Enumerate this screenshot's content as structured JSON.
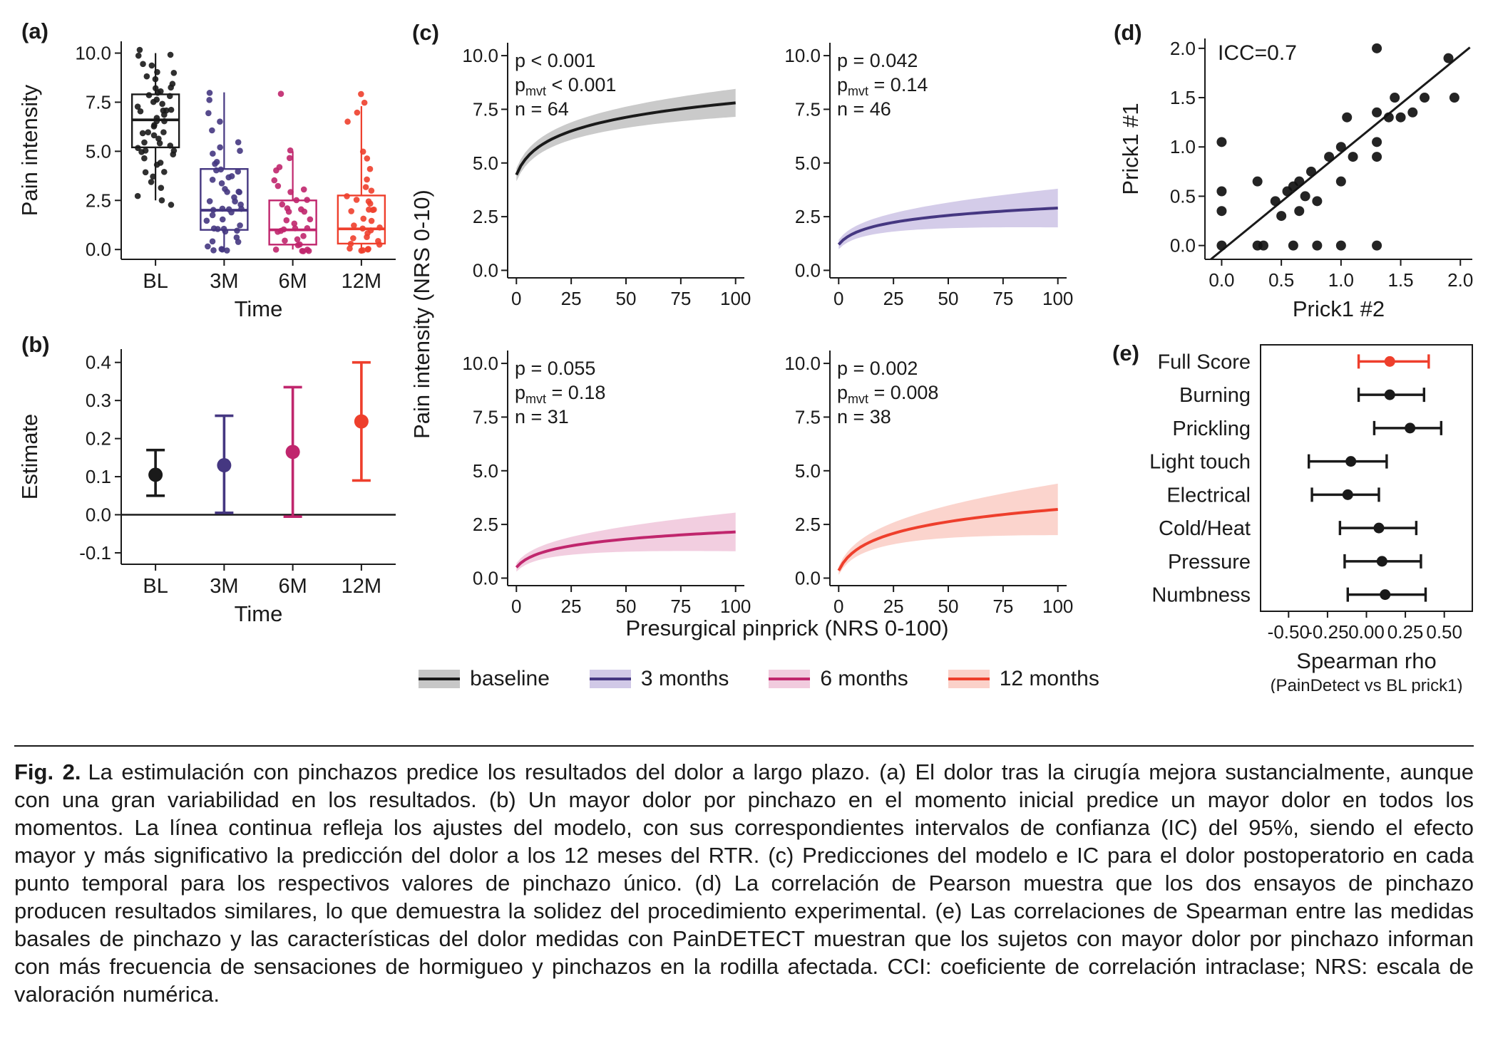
{
  "figure": {
    "background": "#ffffff"
  },
  "panels": {
    "a": {
      "tag": "(a)"
    },
    "b": {
      "tag": "(b)"
    },
    "c": {
      "tag": "(c)"
    },
    "d": {
      "tag": "(d)"
    },
    "e": {
      "tag": "(e)"
    }
  },
  "colors": {
    "baseline": "#1a1a1a",
    "three_months": "#453781",
    "six_months": "#c0266d",
    "twelve_months": "#ee3f2c"
  },
  "legend": {
    "items": [
      {
        "label": "baseline",
        "color": "#1a1a1a",
        "band": "#bdbdbd"
      },
      {
        "label": "3 months",
        "color": "#453781",
        "band": "#c9bfe3"
      },
      {
        "label": "6 months",
        "color": "#c0266d",
        "band": "#efc2d8"
      },
      {
        "label": "12 months",
        "color": "#ee3f2c",
        "band": "#fac9c0"
      }
    ]
  },
  "caption": {
    "label": "Fig. 2.",
    "text": "La estimulación con pinchazos predice los resultados del dolor a largo plazo. (a) El dolor tras la cirugía mejora sustancialmente, aunque con una gran variabilidad en los resultados. (b) Un mayor dolor por pinchazo en el momento inicial predice un mayor dolor en todos los momentos. La línea continua refleja los ajustes del modelo, con sus correspondientes intervalos de confianza (IC) del 95%, siendo el efecto mayor y más significativo la predicción del dolor a los 12 meses del RTR. (c) Predicciones del modelo e IC para el dolor postoperatorio en cada punto temporal para los respectivos valores de pinchazo único. (d) La correlación de Pearson muestra que los dos ensayos de pinchazo producen resultados similares, lo que demuestra la solidez del procedimiento experimental. (e) Las correlaciones de Spearman entre las medidas basales de pinchazo y las características del dolor medidas con PainDETECT muestran que los sujetos con mayor dolor por pinchazo informan con más frecuencia de sensaciones de hormigueo y pinchazos en la rodilla afectada. CCI: coeficiente de correlación intraclase; NRS: escala de valoración numérica."
  },
  "chart_data": [
    {
      "id": "a",
      "type": "boxplot",
      "ylabel": "Pain intensity",
      "xlabel": "Time",
      "categories": [
        "BL",
        "3M",
        "6M",
        "12M"
      ],
      "yticks": [
        0.0,
        2.5,
        5.0,
        7.5,
        10.0
      ],
      "yticklabels": [
        "0.0",
        "2.5",
        "5.0",
        "7.5",
        "10.0"
      ],
      "ylim": [
        -0.5,
        10.6
      ],
      "series": [
        {
          "name": "BL",
          "color": "#1a1a1a",
          "box": {
            "lo": 2.5,
            "q1": 5.2,
            "median": 6.6,
            "q3": 7.9,
            "hi": 10.0
          },
          "points": [
            10.2,
            10,
            9.8,
            9.5,
            9.3,
            9,
            9,
            8.8,
            8.6,
            8.5,
            8.3,
            8.2,
            8,
            8,
            7.9,
            7.8,
            7.6,
            7.5,
            7.5,
            7.3,
            7.2,
            7,
            7,
            7,
            6.8,
            6.7,
            6.5,
            6.5,
            6.4,
            6.2,
            6,
            6,
            6,
            5.9,
            5.7,
            5.5,
            5.5,
            5.3,
            5.2,
            5,
            5,
            5,
            4.8,
            4.6,
            4.5,
            4.3,
            4,
            4,
            3.8,
            3.5,
            3.2,
            2.8,
            2.5,
            2.2
          ]
        },
        {
          "name": "3M",
          "color": "#453781",
          "box": {
            "lo": 0.0,
            "q1": 1.0,
            "median": 2.0,
            "q3": 4.1,
            "hi": 8.0
          },
          "points": [
            8,
            7.6,
            7,
            6.5,
            6,
            5.5,
            5.2,
            5,
            4.8,
            4.5,
            4.3,
            4.1,
            4,
            4,
            3.8,
            3.6,
            3.5,
            3.3,
            3.1,
            3,
            3,
            2.9,
            2.7,
            2.5,
            2.5,
            2.3,
            2.1,
            2,
            2,
            2,
            1.9,
            1.7,
            1.5,
            1.5,
            1.3,
            1.1,
            1,
            1,
            1,
            0.9,
            0.7,
            0.5,
            0.4,
            0.2,
            0,
            0,
            0,
            0
          ]
        },
        {
          "name": "6M",
          "color": "#c0266d",
          "box": {
            "lo": 0.0,
            "q1": 0.25,
            "median": 1.0,
            "q3": 2.5,
            "hi": 5.0
          },
          "points": [
            8,
            5,
            4.6,
            4.2,
            4,
            3.6,
            3.2,
            3,
            2.9,
            2.6,
            2.5,
            2.3,
            2.1,
            2,
            2,
            1.9,
            1.6,
            1.5,
            1.3,
            1.1,
            1,
            1,
            1,
            0.9,
            0.6,
            0.5,
            0.5,
            0.3,
            0.2,
            0,
            0,
            0,
            0,
            0
          ]
        },
        {
          "name": "12M",
          "color": "#ee3f2c",
          "box": {
            "lo": 0.0,
            "q1": 0.3,
            "median": 1.05,
            "q3": 2.75,
            "hi": 7.3
          },
          "points": [
            8,
            7.5,
            7,
            6.6,
            5,
            4.6,
            4.1,
            3.6,
            3.1,
            3,
            2.8,
            2.6,
            2.5,
            2.3,
            2.1,
            2,
            2,
            1.9,
            1.6,
            1.5,
            1.3,
            1.1,
            1,
            1,
            0.9,
            0.6,
            0.5,
            0.5,
            0.3,
            0.2,
            0,
            0,
            0,
            0,
            0
          ]
        }
      ]
    },
    {
      "id": "b",
      "type": "pointrange",
      "ylabel": "Estimate",
      "xlabel": "Time",
      "categories": [
        "BL",
        "3M",
        "6M",
        "12M"
      ],
      "yticks": [
        -0.1,
        0.0,
        0.1,
        0.2,
        0.3,
        0.4
      ],
      "yticklabels": [
        "-0.1",
        "0.0",
        "0.1",
        "0.2",
        "0.3",
        "0.4"
      ],
      "ylim": [
        -0.13,
        0.435
      ],
      "hline": 0.0,
      "estimates": [
        {
          "category": "BL",
          "value": 0.105,
          "lo": 0.05,
          "hi": 0.17,
          "color": "#1a1a1a"
        },
        {
          "category": "3M",
          "value": 0.13,
          "lo": 0.005,
          "hi": 0.26,
          "color": "#453781"
        },
        {
          "category": "6M",
          "value": 0.165,
          "lo": -0.005,
          "hi": 0.335,
          "color": "#c0266d"
        },
        {
          "category": "12M",
          "value": 0.245,
          "lo": 0.09,
          "hi": 0.4,
          "color": "#ee3f2c"
        }
      ]
    },
    {
      "id": "c",
      "type": "line",
      "ylabel": "Pain intensity (NRS 0-10)",
      "xlabel": "Presurgical pinprick (NRS 0-100)",
      "xticks": [
        0,
        25,
        50,
        75,
        100
      ],
      "xticklabels": [
        "0",
        "25",
        "50",
        "75",
        "100"
      ],
      "yticks": [
        0.0,
        2.5,
        5.0,
        7.5,
        10.0
      ],
      "yticklabels": [
        "0.0",
        "2.5",
        "5.0",
        "7.5",
        "10.0"
      ],
      "xlim": [
        -4,
        104
      ],
      "ylim": [
        -0.35,
        10.6
      ],
      "stats_sub_label": "mvt",
      "subplots": [
        {
          "name": "baseline",
          "color": "#1a1a1a",
          "band": "#bdbdbd",
          "stats": {
            "p": "p < 0.001",
            "pmvt": "< 0.001",
            "n": "n = 64"
          },
          "curve": {
            "y_start": 4.45,
            "y_end": 7.8,
            "shape_k": 0.25
          },
          "ci_halfwidth": {
            "start": 0.3,
            "end": 0.65
          }
        },
        {
          "name": "3 months",
          "color": "#453781",
          "band": "#c9bfe3",
          "stats": {
            "p": "p = 0.042",
            "pmvt": "= 0.14",
            "n": "n = 46"
          },
          "curve": {
            "y_start": 1.2,
            "y_end": 2.9,
            "shape_k": 0.25
          },
          "ci_halfwidth": {
            "start": 0.22,
            "end": 0.9
          }
        },
        {
          "name": "6 months",
          "color": "#c0266d",
          "band": "#efc2d8",
          "stats": {
            "p": "p = 0.055",
            "pmvt": "= 0.18",
            "n": "n = 31"
          },
          "curve": {
            "y_start": 0.5,
            "y_end": 2.15,
            "shape_k": 0.25
          },
          "ci_halfwidth": {
            "start": 0.2,
            "end": 0.9
          }
        },
        {
          "name": "12 months",
          "color": "#ee3f2c",
          "band": "#fac9c0",
          "stats": {
            "p": "p = 0.002",
            "pmvt": "= 0.008",
            "n": "n = 38"
          },
          "curve": {
            "y_start": 0.35,
            "y_end": 3.2,
            "shape_k": 0.25
          },
          "ci_halfwidth": {
            "start": 0.2,
            "end": 1.2
          }
        }
      ]
    },
    {
      "id": "d",
      "type": "scatter",
      "annotation": "ICC=0.7",
      "xlabel": "Prick1 #2",
      "ylabel": "Prick1 #1",
      "ticks": [
        0.0,
        0.5,
        1.0,
        1.5,
        2.0
      ],
      "ticklabels": [
        "0.0",
        "0.5",
        "1.0",
        "1.5",
        "2.0"
      ],
      "lim": [
        -0.14,
        2.1
      ],
      "fit_line": {
        "slope": 0.99,
        "intercept": -0.05
      },
      "points": [
        [
          0,
          0
        ],
        [
          0,
          0.35
        ],
        [
          0,
          0.55
        ],
        [
          0,
          1.05
        ],
        [
          0.3,
          0
        ],
        [
          0.3,
          0.65
        ],
        [
          0.35,
          0
        ],
        [
          0.45,
          0.45
        ],
        [
          0.5,
          0.3
        ],
        [
          0.55,
          0.55
        ],
        [
          0.6,
          0.6
        ],
        [
          0.6,
          0
        ],
        [
          0.65,
          0.35
        ],
        [
          0.65,
          0.65
        ],
        [
          0.7,
          0.5
        ],
        [
          0.75,
          0.75
        ],
        [
          0.8,
          0
        ],
        [
          0.8,
          0.45
        ],
        [
          0.9,
          0.9
        ],
        [
          1,
          0
        ],
        [
          1,
          0.65
        ],
        [
          1,
          1
        ],
        [
          1.05,
          1.3
        ],
        [
          1.1,
          0.9
        ],
        [
          1.3,
          0
        ],
        [
          1.3,
          0.9
        ],
        [
          1.3,
          1.05
        ],
        [
          1.3,
          1.35
        ],
        [
          1.3,
          2
        ],
        [
          1.4,
          1.3
        ],
        [
          1.45,
          1.5
        ],
        [
          1.5,
          1.3
        ],
        [
          1.6,
          1.35
        ],
        [
          1.7,
          1.5
        ],
        [
          1.9,
          1.9
        ],
        [
          1.95,
          1.5
        ]
      ]
    },
    {
      "id": "e",
      "type": "forest",
      "xlabel": "Spearman rho",
      "xlabel_sub": "(PainDetect vs BL prick1)",
      "xticks": [
        -0.5,
        -0.25,
        0,
        0.25,
        0.5
      ],
      "xticklabels": [
        "-0.50",
        "-0.25",
        "0.00",
        "0.25",
        "0.50"
      ],
      "xlim": [
        -0.68,
        0.68
      ],
      "items": [
        {
          "label": "Full Score",
          "value": 0.15,
          "lo": -0.05,
          "hi": 0.4,
          "color": "#ee3f2c"
        },
        {
          "label": "Burning",
          "value": 0.15,
          "lo": -0.05,
          "hi": 0.37,
          "color": "#1a1a1a"
        },
        {
          "label": "Prickling",
          "value": 0.28,
          "lo": 0.05,
          "hi": 0.48,
          "color": "#1a1a1a"
        },
        {
          "label": "Light touch",
          "value": -0.1,
          "lo": -0.37,
          "hi": 0.13,
          "color": "#1a1a1a"
        },
        {
          "label": "Electrical",
          "value": -0.12,
          "lo": -0.35,
          "hi": 0.08,
          "color": "#1a1a1a"
        },
        {
          "label": "Cold/Heat",
          "value": 0.08,
          "lo": -0.17,
          "hi": 0.32,
          "color": "#1a1a1a"
        },
        {
          "label": "Pressure",
          "value": 0.1,
          "lo": -0.14,
          "hi": 0.35,
          "color": "#1a1a1a"
        },
        {
          "label": "Numbness",
          "value": 0.12,
          "lo": -0.12,
          "hi": 0.38,
          "color": "#1a1a1a"
        }
      ]
    }
  ]
}
